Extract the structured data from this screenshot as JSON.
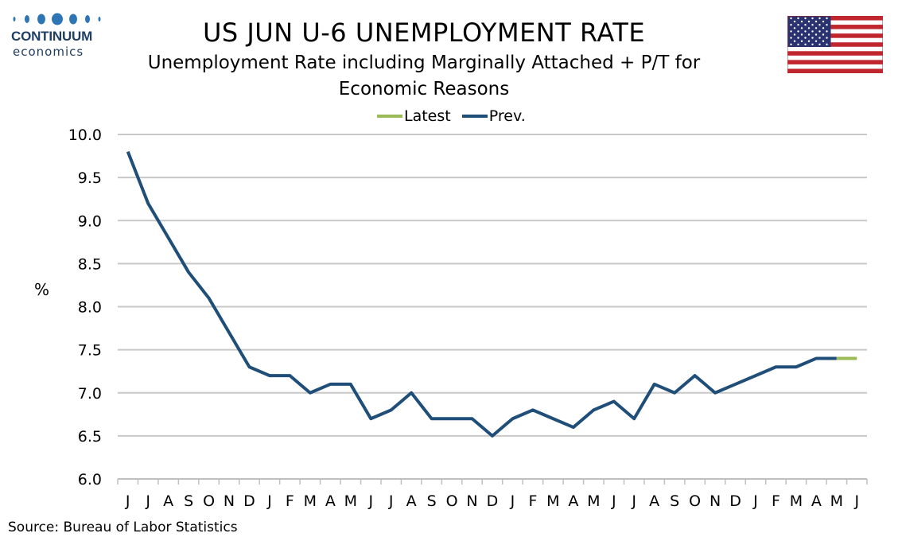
{
  "header": {
    "logo_word": "CONTINUUM",
    "logo_sub": "economics",
    "flag_icon": "us-flag-icon"
  },
  "footer": {
    "source": "Source: Bureau of Labor Statistics"
  },
  "colors": {
    "latest": "#9bbb59",
    "prev": "#1f4e79",
    "grid": "#c8c8c8",
    "logo": "#2e75b6"
  },
  "chart_data": {
    "type": "line",
    "title": "US JUN U-6 UNEMPLOYMENT RATE",
    "subtitle_lines": [
      "Unemployment Rate including Marginally Attached + P/T for",
      "Economic Reasons"
    ],
    "xlabel": "",
    "ylabel": "%",
    "ylim": [
      6.0,
      10.0
    ],
    "yticks": [
      "6.0",
      "6.5",
      "7.0",
      "7.5",
      "8.0",
      "8.5",
      "9.0",
      "9.5",
      "10.0"
    ],
    "grid": true,
    "legend_position": "top-center",
    "categories": [
      "J",
      "J",
      "A",
      "S",
      "O",
      "N",
      "D",
      "J",
      "F",
      "M",
      "A",
      "M",
      "J",
      "J",
      "A",
      "S",
      "O",
      "N",
      "D",
      "J",
      "F",
      "M",
      "A",
      "M",
      "J",
      "J",
      "A",
      "S",
      "O",
      "N",
      "D",
      "J",
      "F",
      "M",
      "A",
      "M",
      "J"
    ],
    "series": [
      {
        "name": "Latest",
        "color": "#9bbb59",
        "values": [
          null,
          null,
          null,
          null,
          null,
          null,
          null,
          null,
          null,
          null,
          null,
          null,
          null,
          null,
          null,
          null,
          null,
          null,
          null,
          null,
          null,
          null,
          null,
          null,
          null,
          null,
          null,
          null,
          null,
          null,
          null,
          null,
          null,
          null,
          null,
          7.4,
          7.4
        ]
      },
      {
        "name": "Prev.",
        "color": "#1f4e79",
        "values": [
          9.8,
          9.2,
          8.8,
          8.4,
          8.1,
          7.7,
          7.3,
          7.2,
          7.2,
          7.0,
          7.1,
          7.1,
          6.7,
          6.8,
          7.0,
          6.7,
          6.7,
          6.7,
          6.5,
          6.7,
          6.8,
          6.7,
          6.6,
          6.8,
          6.9,
          6.7,
          7.1,
          7.0,
          7.2,
          7.0,
          7.1,
          7.2,
          7.3,
          7.3,
          7.4,
          7.4,
          null
        ]
      }
    ]
  }
}
